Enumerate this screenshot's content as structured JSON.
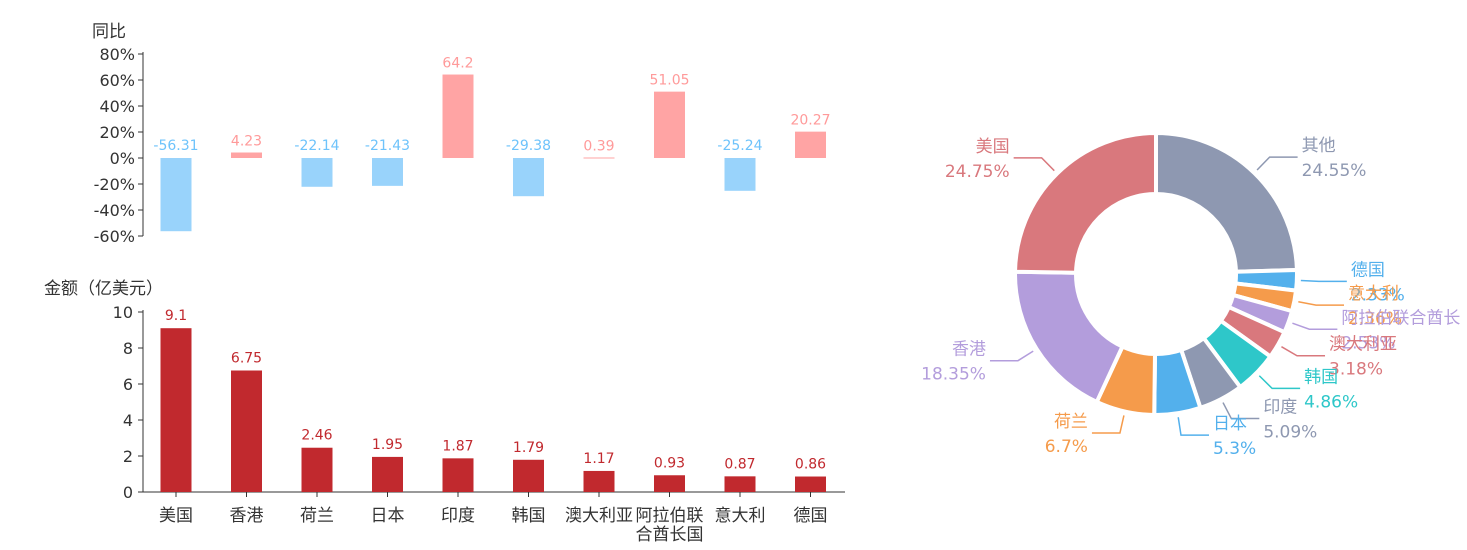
{
  "colors": {
    "axis": "#333333",
    "positive_bar": "#ffa4a4",
    "positive_label": "#ff9a9a",
    "negative_bar": "#99d3fb",
    "negative_label": "#6ec3fb",
    "amount_bar": "#c1292e",
    "amount_label": "#c1292e"
  },
  "chart_data": [
    {
      "id": "yoy",
      "type": "bar",
      "ylabel": "同比",
      "ylim": [
        -60,
        80
      ],
      "yticks": [
        "80%",
        "60%",
        "40%",
        "20%",
        "0%",
        "-20%",
        "-40%",
        "-60%"
      ],
      "ytick_values": [
        80,
        60,
        40,
        20,
        0,
        -20,
        -40,
        -60
      ],
      "categories": [
        "美国",
        "香港",
        "荷兰",
        "日本",
        "印度",
        "韩国",
        "澳大利亚",
        "阿拉伯联合酋长国",
        "意大利",
        "德国"
      ],
      "values": [
        -56.31,
        4.23,
        -22.14,
        -21.43,
        64.2,
        -29.38,
        0.39,
        51.05,
        -25.24,
        20.27
      ],
      "value_labels": [
        "-56.31",
        "4.23",
        "-22.14",
        "-21.43",
        "64.2",
        "-29.38",
        "0.39",
        "51.05",
        "-25.24",
        "20.27"
      ]
    },
    {
      "id": "amount",
      "type": "bar",
      "ylabel": "金额（亿美元）",
      "ylim": [
        0,
        10
      ],
      "yticks": [
        "10",
        "8",
        "6",
        "4",
        "2",
        "0"
      ],
      "ytick_values": [
        10,
        8,
        6,
        4,
        2,
        0
      ],
      "categories": [
        "美国",
        "香港",
        "荷兰",
        "日本",
        "印度",
        "韩国",
        "澳大利亚",
        "阿拉伯联合酋长国",
        "意大利",
        "德国"
      ],
      "xtick_labels": [
        [
          "美国"
        ],
        [
          "香港"
        ],
        [
          "荷兰"
        ],
        [
          "日本"
        ],
        [
          "印度"
        ],
        [
          "韩国"
        ],
        [
          "澳大利亚"
        ],
        [
          "阿拉伯联",
          "合酋长国"
        ],
        [
          "意大利"
        ],
        [
          "德国"
        ]
      ],
      "values": [
        9.1,
        6.75,
        2.46,
        1.95,
        1.87,
        1.79,
        1.17,
        0.93,
        0.87,
        0.86
      ],
      "value_labels": [
        "9.1",
        "6.75",
        "2.46",
        "1.95",
        "1.87",
        "1.79",
        "1.17",
        "0.93",
        "0.87",
        "0.86"
      ]
    },
    {
      "id": "share",
      "type": "pie",
      "donut": true,
      "slices": [
        {
          "name": "其他",
          "value": 24.55,
          "label": "24.55%",
          "color": "#8e98b1"
        },
        {
          "name": "德国",
          "value": 2.33,
          "label": "2.33%",
          "color": "#53b0ec"
        },
        {
          "name": "意大利",
          "value": 2.36,
          "label": "2.36%",
          "color": "#f59b4b"
        },
        {
          "name": "阿拉伯联合酋长",
          "value": 2.53,
          "label": "2.53%",
          "color": "#b39ddc"
        },
        {
          "name": "澳大利亚",
          "value": 3.18,
          "label": "3.18%",
          "color": "#d9787d"
        },
        {
          "name": "韩国",
          "value": 4.86,
          "label": "4.86%",
          "color": "#2ec7c9"
        },
        {
          "name": "印度",
          "value": 5.09,
          "label": "5.09%",
          "color": "#8e98b1"
        },
        {
          "name": "日本",
          "value": 5.3,
          "label": "5.3%",
          "color": "#53b0ec"
        },
        {
          "name": "荷兰",
          "value": 6.7,
          "label": "6.7%",
          "color": "#f59b4b"
        },
        {
          "name": "香港",
          "value": 18.35,
          "label": "18.35%",
          "color": "#b39ddc"
        },
        {
          "name": "美国",
          "value": 24.75,
          "label": "24.75%",
          "color": "#d9787d"
        }
      ]
    }
  ]
}
